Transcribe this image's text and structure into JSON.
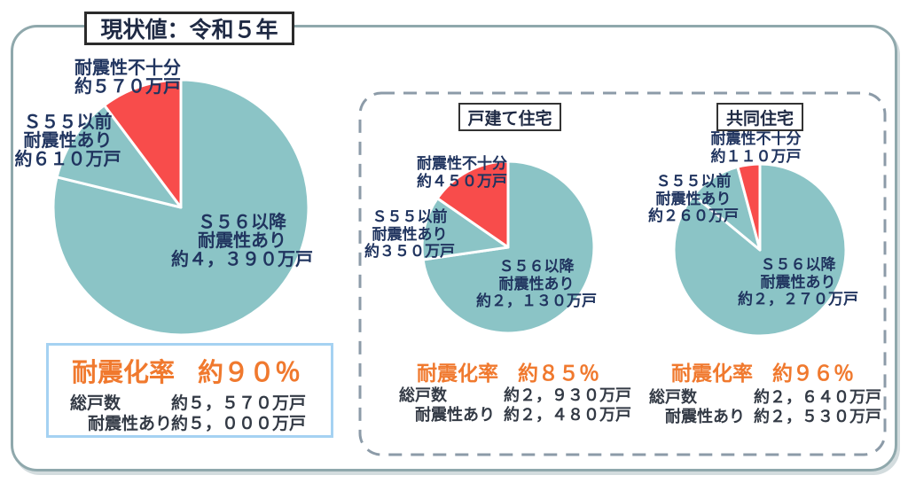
{
  "panel_title": "現状値：令和５年",
  "colors": {
    "safe_teal": "#8bc4c6",
    "unsafe_red": "#f84c4b",
    "accent_orange": "#f0792e",
    "navy_text": "#20345f",
    "stat_text": "#333a45",
    "panel_border": "#8fa8ac",
    "dash_border": "#8c9ba8",
    "stat_box_border": "#a5d2f2"
  },
  "chart_data": [
    {
      "type": "pie",
      "title": "",
      "legend_note": "全住宅(タイトル表記なし)",
      "segments": [
        {
          "lines": [
            "Ｓ５６以降",
            "耐震性あり",
            "約４，３９０万戸"
          ],
          "value": 4390,
          "color": "safe_teal"
        },
        {
          "lines": [
            "Ｓ５５以前",
            "耐震性あり",
            "約６１０万戸"
          ],
          "value": 610,
          "color": "safe_teal"
        },
        {
          "lines": [
            "耐震性不十分",
            "約５７０万戸"
          ],
          "value": 570,
          "color": "unsafe_red"
        }
      ],
      "rate": {
        "label": "耐震化率",
        "value": "約９０％"
      },
      "totals": [
        {
          "label": "総戸数",
          "value": "約５，５７０万戸"
        },
        {
          "label": "耐震性あり",
          "value": "約５，０００万戸"
        }
      ]
    },
    {
      "type": "pie",
      "title": "戸建て住宅",
      "segments": [
        {
          "lines": [
            "Ｓ５６以降",
            "耐震性あり",
            "約２，１３０万戸"
          ],
          "value": 2130,
          "color": "safe_teal"
        },
        {
          "lines": [
            "Ｓ５５以前",
            "耐震性あり",
            "約３５０万戸"
          ],
          "value": 350,
          "color": "safe_teal"
        },
        {
          "lines": [
            "耐震性不十分",
            "約４５０万戸"
          ],
          "value": 450,
          "color": "unsafe_red"
        }
      ],
      "rate": {
        "label": "耐震化率",
        "value": "約８５％"
      },
      "totals": [
        {
          "label": "総戸数",
          "value": "約２，９３０万戸"
        },
        {
          "label": "耐震性あり",
          "value": "約２，４８０万戸"
        }
      ]
    },
    {
      "type": "pie",
      "title": "共同住宅",
      "segments": [
        {
          "lines": [
            "Ｓ５６以降",
            "耐震性あり",
            "約２，２７０万戸"
          ],
          "value": 2270,
          "color": "safe_teal"
        },
        {
          "lines": [
            "Ｓ５５以前",
            "耐震性あり",
            "約２６０万戸"
          ],
          "value": 260,
          "color": "safe_teal"
        },
        {
          "lines": [
            "耐震性不十分",
            "約１１０万戸"
          ],
          "value": 110,
          "color": "unsafe_red"
        }
      ],
      "rate": {
        "label": "耐震化率",
        "value": "約９６％"
      },
      "totals": [
        {
          "label": "総戸数",
          "value": "約２，６４０万戸"
        },
        {
          "label": "耐震性あり",
          "value": "約２，５３０万戸"
        }
      ]
    }
  ]
}
